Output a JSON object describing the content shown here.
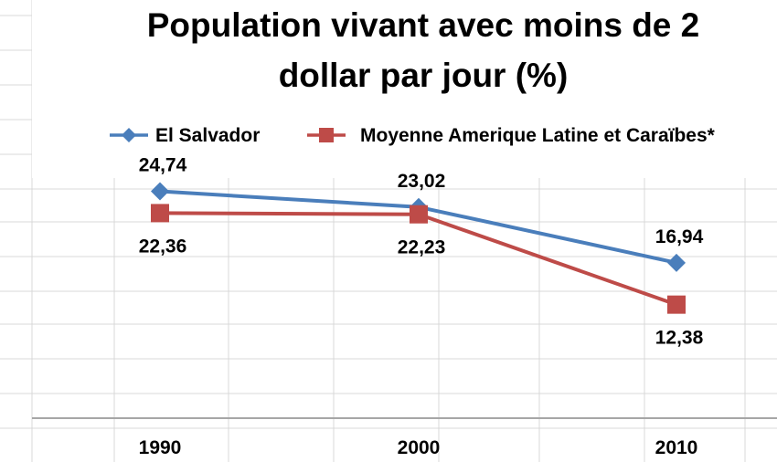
{
  "colors": {
    "el_salvador": "#4a7ebb",
    "moyenne": "#be4b48",
    "gridline": "#d9d9d9",
    "axis": "#a6a6a6",
    "text": "#000000"
  },
  "chart_data": {
    "type": "line",
    "title_lines": [
      "Population vivant avec moins de 2",
      "dollar par jour (%)"
    ],
    "xlabel": "",
    "ylabel": "",
    "categories": [
      "1990",
      "2000",
      "2010"
    ],
    "series": [
      {
        "name": "El Salvador",
        "marker": "diamond",
        "values": [
          24.74,
          23.02,
          16.94
        ],
        "labels": [
          "24,74",
          "23,02",
          "16,94"
        ],
        "label_position": "above"
      },
      {
        "name": "Moyenne Amerique Latine et Caraïbes*",
        "marker": "square",
        "values": [
          22.36,
          22.23,
          12.38
        ],
        "labels": [
          "22,36",
          "22,23",
          "12,38"
        ],
        "label_position": "below"
      }
    ],
    "ylim": [
      0,
      45
    ],
    "legend_position": "top",
    "grid": false
  }
}
